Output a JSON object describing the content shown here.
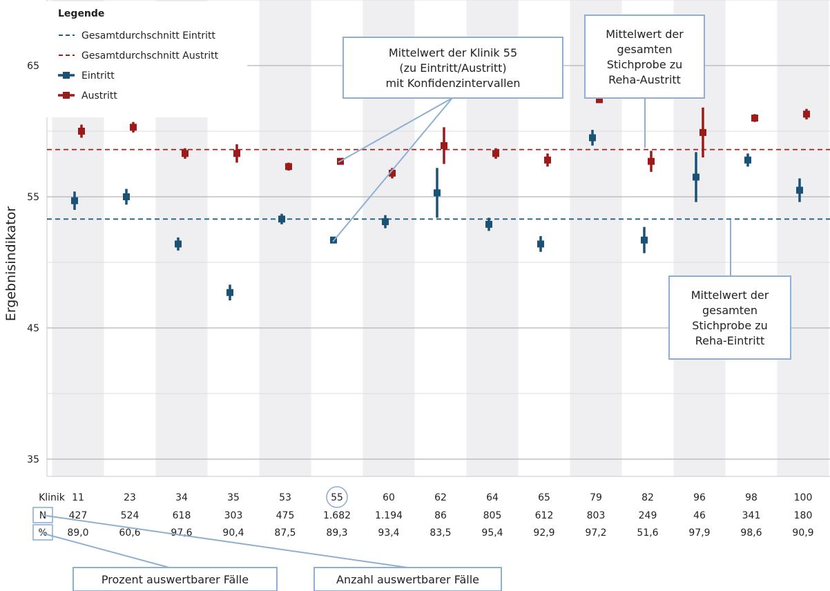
{
  "chart_data": {
    "type": "scatter",
    "ylabel": "Ergebnisindikator",
    "ylim": [
      33,
      71
    ],
    "y_ticks": [
      35,
      45,
      55,
      65
    ],
    "y_tick_labels": [
      "35",
      "45",
      "55",
      "65"
    ],
    "grid": true,
    "legend_placement": "top-left",
    "legend": {
      "title": "Legende",
      "entries": [
        {
          "label": "Gesamtdurchschnitt Eintritt",
          "style": "dashed",
          "color": "#1f5f7f"
        },
        {
          "label": "Gesamtdurchschnitt Austritt",
          "style": "dashed",
          "color": "#a61c1c"
        },
        {
          "label": "Eintritt",
          "style": "marker",
          "color": "#1a5276"
        },
        {
          "label": "Austritt",
          "style": "marker",
          "color": "#9b1b1b"
        }
      ]
    },
    "categories": [
      "11",
      "23",
      "34",
      "35",
      "53",
      "55",
      "60",
      "62",
      "64",
      "65",
      "79",
      "82",
      "96",
      "98",
      "100"
    ],
    "table": {
      "klinik_label": "Klinik",
      "n_label": "N",
      "pct_label": "%",
      "n_values": [
        "427",
        "524",
        "618",
        "303",
        "475",
        "1.682",
        "1.194",
        "86",
        "805",
        "612",
        "803",
        "249",
        "46",
        "341",
        "180"
      ],
      "pct_values": [
        "89,0",
        "60,6",
        "97,6",
        "90,4",
        "87,5",
        "89,3",
        "93,4",
        "83,5",
        "95,4",
        "92,9",
        "97,2",
        "51,6",
        "97,9",
        "98,6",
        "90,9"
      ]
    },
    "reference_lines": {
      "eintritt_mean": 53.3,
      "austritt_mean": 58.6
    },
    "series": [
      {
        "name": "Eintritt",
        "color": "#1a5276",
        "values": [
          54.7,
          55.0,
          51.4,
          47.7,
          53.3,
          51.7,
          53.1,
          55.3,
          52.9,
          51.4,
          59.5,
          51.7,
          56.5,
          57.8,
          55.5
        ],
        "lower": [
          54.0,
          54.4,
          50.9,
          47.1,
          52.9,
          51.5,
          52.6,
          53.4,
          52.4,
          50.8,
          58.9,
          50.7,
          54.6,
          57.3,
          54.6
        ],
        "upper": [
          55.4,
          55.6,
          51.9,
          48.3,
          53.7,
          51.9,
          53.6,
          57.2,
          53.4,
          52.0,
          60.1,
          52.7,
          58.4,
          58.3,
          56.4
        ]
      },
      {
        "name": "Austritt",
        "color": "#9b1b1b",
        "values": [
          60.0,
          60.3,
          58.3,
          58.3,
          57.3,
          57.7,
          56.8,
          58.9,
          58.3,
          57.8,
          62.4,
          57.7,
          59.9,
          61.0,
          61.3
        ],
        "lower": [
          59.5,
          59.9,
          57.9,
          57.6,
          57.0,
          57.5,
          56.4,
          57.5,
          57.9,
          57.3,
          62.2,
          56.9,
          58.0,
          60.7,
          60.9
        ],
        "upper": [
          60.5,
          60.7,
          58.7,
          59.0,
          57.6,
          57.9,
          57.2,
          60.3,
          58.7,
          58.3,
          62.6,
          58.5,
          61.8,
          61.3,
          61.7
        ]
      }
    ],
    "annotations": [
      {
        "key": "klinik55",
        "lines": [
          "Mittelwert der Klinik 55",
          "(zu Eintritt/Austritt)",
          "mit Konfidenzintervallen"
        ]
      },
      {
        "key": "austritt_total",
        "lines": [
          "Mittelwert der",
          "gesamten",
          "Stichprobe zu",
          "Reha-Austritt"
        ]
      },
      {
        "key": "eintritt_total",
        "lines": [
          "Mittelwert der",
          "gesamten",
          "Stichprobe zu",
          "Reha-Eintritt"
        ]
      },
      {
        "key": "prozent",
        "lines": [
          "Prozent auswertbarer Fälle"
        ]
      },
      {
        "key": "anzahl",
        "lines": [
          "Anzahl auswertbarer Fälle"
        ]
      }
    ]
  }
}
